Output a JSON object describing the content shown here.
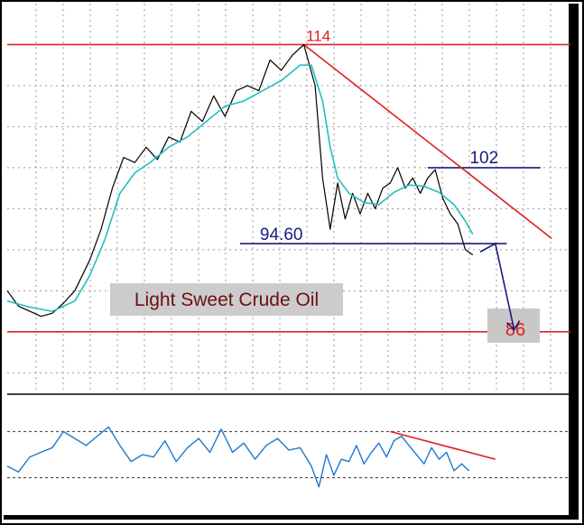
{
  "chart_data": {
    "type": "line",
    "title": "Light Sweet Crude Oil",
    "price_panel": {
      "ylim": [
        80,
        118
      ],
      "grid": true,
      "series": [
        {
          "name": "",
          "color": "#000000",
          "points": [
            [
              0,
              90
            ],
            [
              3,
              88.5
            ],
            [
              6,
              88
            ],
            [
              9,
              87.5
            ],
            [
              12,
              87.8
            ],
            [
              15,
              88.8
            ],
            [
              18,
              90
            ],
            [
              22,
              93
            ],
            [
              25,
              96
            ],
            [
              28,
              100
            ],
            [
              31,
              103
            ],
            [
              34,
              102.5
            ],
            [
              37,
              104
            ],
            [
              40,
              102.8
            ],
            [
              43,
              105
            ],
            [
              46,
              104.5
            ],
            [
              49,
              107.5
            ],
            [
              52,
              106.5
            ],
            [
              55,
              109
            ],
            [
              58,
              107
            ],
            [
              61,
              109.5
            ],
            [
              64,
              110
            ],
            [
              67,
              109.5
            ],
            [
              70,
              112.5
            ],
            [
              73,
              111.5
            ],
            [
              76,
              113
            ],
            [
              79,
              114
            ],
            [
              82,
              110
            ],
            [
              84,
              101
            ],
            [
              86,
              96
            ],
            [
              88,
              100.5
            ],
            [
              90,
              97
            ],
            [
              92,
              99.5
            ],
            [
              94,
              97.5
            ],
            [
              96,
              99.5
            ],
            [
              98,
              98
            ],
            [
              100,
              100
            ],
            [
              102,
              100.5
            ],
            [
              104,
              102
            ],
            [
              106,
              100
            ],
            [
              108,
              101
            ],
            [
              110,
              99.5
            ],
            [
              112,
              101
            ],
            [
              114,
              101.8
            ],
            [
              116,
              99
            ],
            [
              118,
              97.5
            ],
            [
              120,
              96.5
            ],
            [
              122,
              94
            ],
            [
              124,
              93.5
            ]
          ]
        },
        {
          "name": "",
          "color": "#20c0c0",
          "points": [
            [
              0,
              89
            ],
            [
              6,
              88.4
            ],
            [
              12,
              88
            ],
            [
              18,
              89
            ],
            [
              22,
              91.5
            ],
            [
              26,
              95
            ],
            [
              30,
              99.5
            ],
            [
              34,
              101.5
            ],
            [
              38,
              102.5
            ],
            [
              43,
              104
            ],
            [
              48,
              105
            ],
            [
              53,
              106.5
            ],
            [
              58,
              108
            ],
            [
              63,
              108.5
            ],
            [
              68,
              109.5
            ],
            [
              73,
              110.5
            ],
            [
              78,
              112
            ],
            [
              81,
              112
            ],
            [
              84,
              108.5
            ],
            [
              86,
              104
            ],
            [
              88,
              101
            ],
            [
              91,
              99.5
            ],
            [
              95,
              98.6
            ],
            [
              99,
              98.4
            ],
            [
              103,
              99.6
            ],
            [
              107,
              100.3
            ],
            [
              111,
              100.2
            ],
            [
              115,
              99.6
            ],
            [
              119,
              98.4
            ],
            [
              122,
              96.8
            ],
            [
              124,
              95.5
            ]
          ]
        }
      ],
      "levels": [
        {
          "label": "114",
          "value": 114
        },
        {
          "label": "102",
          "value": 102
        },
        {
          "label": "94.60",
          "value": 94.6
        },
        {
          "label": "86",
          "value": 86
        }
      ],
      "trendline": {
        "from": [
          79,
          114
        ],
        "to": [
          145,
          95.1
        ]
      },
      "projection": {
        "from": [
          126,
          93.8
        ],
        "to": [
          135,
          86.2
        ]
      }
    },
    "indicator_panel": {
      "ylim": [
        0,
        100
      ],
      "guides": [
        70,
        30
      ],
      "series": [
        {
          "name": "",
          "color": "#1e78d2",
          "points": [
            [
              0,
              40
            ],
            [
              3,
              35
            ],
            [
              6,
              48
            ],
            [
              9,
              52
            ],
            [
              12,
              56
            ],
            [
              15,
              70
            ],
            [
              18,
              64
            ],
            [
              21,
              58
            ],
            [
              24,
              66
            ],
            [
              27,
              74
            ],
            [
              30,
              58
            ],
            [
              33,
              44
            ],
            [
              36,
              50
            ],
            [
              39,
              48
            ],
            [
              42,
              62
            ],
            [
              45,
              44
            ],
            [
              48,
              56
            ],
            [
              51,
              64
            ],
            [
              54,
              52
            ],
            [
              57,
              72
            ],
            [
              60,
              52
            ],
            [
              63,
              60
            ],
            [
              66,
              46
            ],
            [
              69,
              58
            ],
            [
              72,
              64
            ],
            [
              75,
              54
            ],
            [
              78,
              56
            ],
            [
              81,
              40
            ],
            [
              83,
              22
            ],
            [
              85,
              50
            ],
            [
              87,
              32
            ],
            [
              89,
              46
            ],
            [
              91,
              44
            ],
            [
              93,
              58
            ],
            [
              95,
              42
            ],
            [
              97,
              52
            ],
            [
              99,
              60
            ],
            [
              101,
              48
            ],
            [
              103,
              62
            ],
            [
              105,
              66
            ],
            [
              107,
              58
            ],
            [
              109,
              50
            ],
            [
              111,
              42
            ],
            [
              113,
              56
            ],
            [
              115,
              46
            ],
            [
              117,
              52
            ],
            [
              119,
              36
            ],
            [
              121,
              42
            ],
            [
              123,
              36
            ]
          ]
        }
      ],
      "trendline": {
        "from": [
          102,
          70
        ],
        "to": [
          130,
          46
        ]
      }
    },
    "x_range": [
      0,
      150
    ]
  }
}
